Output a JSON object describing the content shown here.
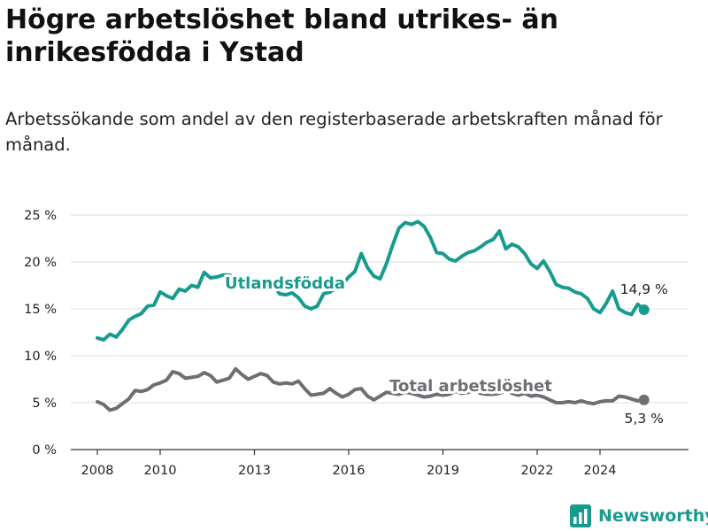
{
  "title": "Högre arbetslöshet bland utrikes- än inrikesfödda i Ystad",
  "subtitle": "Arbetssökande som andel av den registerbaserade arbetskraften månad för månad.",
  "brand": {
    "name": "Newsworthy",
    "logo_icon": "bar-chart-logo-icon"
  },
  "colors": {
    "utlandsfodda": "#179b8e",
    "total": "#6e6e73",
    "grid": "#dcdcdc",
    "axis": "#333333"
  },
  "chart_data": {
    "type": "line",
    "x_unit": "year",
    "xlim": [
      2007.5,
      2025.7
    ],
    "ylim": [
      0,
      25
    ],
    "y_ticks": [
      0,
      5,
      10,
      15,
      20,
      25
    ],
    "y_tick_labels": [
      "0 %",
      "5 %",
      "10 %",
      "15 %",
      "20 %",
      "25 %"
    ],
    "x_ticks": [
      2008,
      2010,
      2013,
      2016,
      2019,
      2022,
      2024
    ],
    "x_tick_labels": [
      "2008",
      "2010",
      "2013",
      "2016",
      "2019",
      "2022",
      "2024"
    ],
    "grid": true,
    "legend": "inline",
    "series": [
      {
        "name": "Utlandsfödda",
        "color": "#179b8e",
        "end_label": "14,9 %",
        "points": [
          [
            2008.0,
            11.9
          ],
          [
            2008.2,
            11.7
          ],
          [
            2008.4,
            12.3
          ],
          [
            2008.6,
            12.0
          ],
          [
            2008.8,
            12.8
          ],
          [
            2009.0,
            13.8
          ],
          [
            2009.2,
            14.2
          ],
          [
            2009.4,
            14.5
          ],
          [
            2009.6,
            15.3
          ],
          [
            2009.8,
            15.4
          ],
          [
            2010.0,
            16.8
          ],
          [
            2010.2,
            16.4
          ],
          [
            2010.4,
            16.1
          ],
          [
            2010.6,
            17.1
          ],
          [
            2010.8,
            16.9
          ],
          [
            2011.0,
            17.5
          ],
          [
            2011.2,
            17.3
          ],
          [
            2011.4,
            18.9
          ],
          [
            2011.6,
            18.3
          ],
          [
            2011.8,
            18.4
          ],
          [
            2012.0,
            18.6
          ],
          [
            2012.2,
            18.6
          ],
          [
            2012.4,
            18.3
          ],
          [
            2012.6,
            17.6
          ],
          [
            2012.8,
            17.2
          ],
          [
            2013.0,
            17.4
          ],
          [
            2013.2,
            17.2
          ],
          [
            2013.4,
            17.8
          ],
          [
            2013.6,
            17.6
          ],
          [
            2013.8,
            16.6
          ],
          [
            2014.0,
            16.5
          ],
          [
            2014.2,
            16.7
          ],
          [
            2014.4,
            16.2
          ],
          [
            2014.6,
            15.3
          ],
          [
            2014.8,
            15.0
          ],
          [
            2015.0,
            15.3
          ],
          [
            2015.2,
            16.6
          ],
          [
            2015.4,
            16.8
          ],
          [
            2015.6,
            17.2
          ],
          [
            2015.8,
            17.6
          ],
          [
            2016.0,
            18.4
          ],
          [
            2016.2,
            19.0
          ],
          [
            2016.4,
            20.9
          ],
          [
            2016.6,
            19.4
          ],
          [
            2016.8,
            18.5
          ],
          [
            2017.0,
            18.2
          ],
          [
            2017.2,
            19.8
          ],
          [
            2017.4,
            21.8
          ],
          [
            2017.6,
            23.6
          ],
          [
            2017.8,
            24.2
          ],
          [
            2018.0,
            24.0
          ],
          [
            2018.2,
            24.3
          ],
          [
            2018.4,
            23.8
          ],
          [
            2018.6,
            22.6
          ],
          [
            2018.8,
            21.0
          ],
          [
            2019.0,
            20.9
          ],
          [
            2019.2,
            20.3
          ],
          [
            2019.4,
            20.1
          ],
          [
            2019.6,
            20.6
          ],
          [
            2019.8,
            21.0
          ],
          [
            2020.0,
            21.2
          ],
          [
            2020.2,
            21.6
          ],
          [
            2020.4,
            22.1
          ],
          [
            2020.6,
            22.4
          ],
          [
            2020.8,
            23.3
          ],
          [
            2021.0,
            21.4
          ],
          [
            2021.2,
            21.9
          ],
          [
            2021.4,
            21.6
          ],
          [
            2021.6,
            20.9
          ],
          [
            2021.8,
            19.8
          ],
          [
            2022.0,
            19.3
          ],
          [
            2022.2,
            20.1
          ],
          [
            2022.4,
            19.0
          ],
          [
            2022.6,
            17.6
          ],
          [
            2022.8,
            17.3
          ],
          [
            2023.0,
            17.2
          ],
          [
            2023.2,
            16.8
          ],
          [
            2023.4,
            16.6
          ],
          [
            2023.6,
            16.1
          ],
          [
            2023.8,
            15.0
          ],
          [
            2024.0,
            14.6
          ],
          [
            2024.2,
            15.6
          ],
          [
            2024.4,
            16.9
          ],
          [
            2024.6,
            15.0
          ],
          [
            2024.8,
            14.6
          ],
          [
            2025.0,
            14.4
          ],
          [
            2025.2,
            15.5
          ],
          [
            2025.4,
            14.9
          ]
        ]
      },
      {
        "name": "Total arbetslöshet",
        "color": "#6e6e73",
        "end_label": "5,3 %",
        "points": [
          [
            2008.0,
            5.1
          ],
          [
            2008.2,
            4.8
          ],
          [
            2008.4,
            4.2
          ],
          [
            2008.6,
            4.4
          ],
          [
            2008.8,
            4.9
          ],
          [
            2009.0,
            5.4
          ],
          [
            2009.2,
            6.3
          ],
          [
            2009.4,
            6.2
          ],
          [
            2009.6,
            6.4
          ],
          [
            2009.8,
            6.9
          ],
          [
            2010.0,
            7.1
          ],
          [
            2010.2,
            7.4
          ],
          [
            2010.4,
            8.3
          ],
          [
            2010.6,
            8.1
          ],
          [
            2010.8,
            7.6
          ],
          [
            2011.0,
            7.7
          ],
          [
            2011.2,
            7.8
          ],
          [
            2011.4,
            8.2
          ],
          [
            2011.6,
            7.9
          ],
          [
            2011.8,
            7.2
          ],
          [
            2012.0,
            7.4
          ],
          [
            2012.2,
            7.6
          ],
          [
            2012.4,
            8.6
          ],
          [
            2012.6,
            8.0
          ],
          [
            2012.8,
            7.5
          ],
          [
            2013.0,
            7.8
          ],
          [
            2013.2,
            8.1
          ],
          [
            2013.4,
            7.9
          ],
          [
            2013.6,
            7.2
          ],
          [
            2013.8,
            7.0
          ],
          [
            2014.0,
            7.1
          ],
          [
            2014.2,
            7.0
          ],
          [
            2014.4,
            7.3
          ],
          [
            2014.6,
            6.5
          ],
          [
            2014.8,
            5.8
          ],
          [
            2015.0,
            5.9
          ],
          [
            2015.2,
            6.0
          ],
          [
            2015.4,
            6.5
          ],
          [
            2015.6,
            6.0
          ],
          [
            2015.8,
            5.6
          ],
          [
            2016.0,
            5.9
          ],
          [
            2016.2,
            6.4
          ],
          [
            2016.4,
            6.5
          ],
          [
            2016.6,
            5.7
          ],
          [
            2016.8,
            5.3
          ],
          [
            2017.0,
            5.7
          ],
          [
            2017.2,
            6.1
          ],
          [
            2017.4,
            6.0
          ],
          [
            2017.6,
            5.9
          ],
          [
            2017.8,
            6.1
          ],
          [
            2018.0,
            6.0
          ],
          [
            2018.2,
            5.8
          ],
          [
            2018.4,
            5.6
          ],
          [
            2018.6,
            5.7
          ],
          [
            2018.8,
            5.9
          ],
          [
            2019.0,
            5.8
          ],
          [
            2019.2,
            5.9
          ],
          [
            2019.4,
            6.2
          ],
          [
            2019.6,
            6.0
          ],
          [
            2019.8,
            6.1
          ],
          [
            2020.0,
            6.3
          ],
          [
            2020.2,
            6.0
          ],
          [
            2020.4,
            5.9
          ],
          [
            2020.6,
            5.9
          ],
          [
            2020.8,
            6.0
          ],
          [
            2021.0,
            6.3
          ],
          [
            2021.2,
            6.0
          ],
          [
            2021.4,
            5.8
          ],
          [
            2021.6,
            6.0
          ],
          [
            2021.8,
            5.7
          ],
          [
            2022.0,
            5.8
          ],
          [
            2022.2,
            5.6
          ],
          [
            2022.4,
            5.3
          ],
          [
            2022.6,
            5.0
          ],
          [
            2022.8,
            5.0
          ],
          [
            2023.0,
            5.1
          ],
          [
            2023.2,
            5.0
          ],
          [
            2023.4,
            5.2
          ],
          [
            2023.6,
            5.0
          ],
          [
            2023.8,
            4.9
          ],
          [
            2024.0,
            5.1
          ],
          [
            2024.2,
            5.2
          ],
          [
            2024.4,
            5.2
          ],
          [
            2024.6,
            5.7
          ],
          [
            2024.8,
            5.6
          ],
          [
            2025.0,
            5.4
          ],
          [
            2025.2,
            5.2
          ],
          [
            2025.4,
            5.3
          ]
        ]
      }
    ]
  }
}
